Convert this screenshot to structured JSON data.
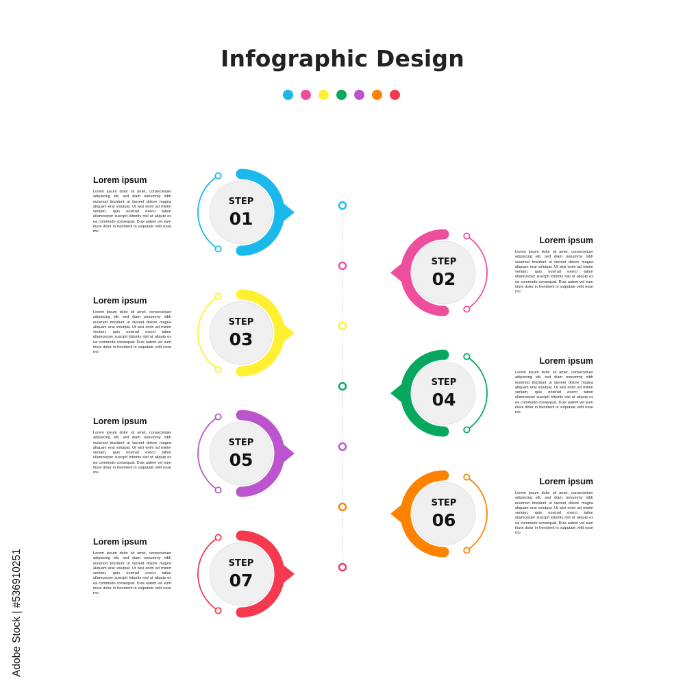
{
  "title": "Infographic Design",
  "colors": {
    "blue": "#1AB8EB",
    "pink": "#EE4F9D",
    "yellow": "#FFF132",
    "green": "#05A85D",
    "purple": "#BC54CD",
    "orange": "#FF8300",
    "red": "#F5394F"
  },
  "palette_dots": [
    "#1AB8EB",
    "#EE4F9D",
    "#FFF132",
    "#05A85D",
    "#BC54CD",
    "#FF8300",
    "#F5394F"
  ],
  "step_word": "STEP",
  "steps": [
    {
      "num": "01",
      "color": "#1AB8EB",
      "side": "left",
      "heading": "Lorem ipsum",
      "text": "Lorem ipsum dolor sit amet, consectetuer adipiscing elit, sed diam nonummy nibh euismod tincidunt ut laoreet dolore magna aliquam erat volutpat. Ut wisi enim ad minim veniam, quis nostrud exerci tation ullamcorper suscipit lobortis nisl ut aliquip ex ea commodo consequat. Duis autem vel eum iriure dolor in hendrerit in vulputate velit esse mo"
    },
    {
      "num": "02",
      "color": "#EE4F9D",
      "side": "right",
      "heading": "Lorem ipsum",
      "text": "Lorem ipsum dolor sit amet, consectetuer adipiscing elit, sed diam nonummy nibh euismod tincidunt ut laoreet dolore magna aliquam erat volutpat. Ut wisi enim ad minim veniam, quis nostrud exerci tation ullamcorper suscipit lobortis nisl ut aliquip ex ea commodo consequat. Duis autem vel eum iriure dolor in hendrerit in vulputate velit esse mo"
    },
    {
      "num": "03",
      "color": "#FFF132",
      "side": "left",
      "heading": "Lorem ipsum",
      "text": "Lorem ipsum dolor sit amet, consectetuer adipiscing elit, sed diam nonummy nibh euismod tincidunt ut laoreet dolore magna aliquam erat volutpat. Ut wisi enim ad minim veniam, quis nostrud exerci tation ullamcorper suscipit lobortis nisl ut aliquip ex ea commodo consequat. Duis autem vel eum iriure dolor in hendrerit in vulputate velit esse mo"
    },
    {
      "num": "04",
      "color": "#05A85D",
      "side": "right",
      "heading": "Lorem ipsum",
      "text": "Lorem ipsum dolor sit amet, consectetuer adipiscing elit, sed diam nonummy nibh euismod tincidunt ut laoreet dolore magna aliquam erat volutpat. Ut wisi enim ad minim veniam, quis nostrud exerci tation ullamcorper suscipit lobortis nisl ut aliquip ex ea commodo consequat. Duis autem vel eum iriure dolor in hendrerit in vulputate velit esse mo"
    },
    {
      "num": "05",
      "color": "#BC54CD",
      "side": "left",
      "heading": "Lorem ipsum",
      "text": "Lorem ipsum dolor sit amet, consectetuer adipiscing elit, sed diam nonummy nibh euismod tincidunt ut laoreet dolore magna aliquam erat volutpat. Ut wisi enim ad minim veniam, quis nostrud exerci tation ullamcorper suscipit lobortis nisl ut aliquip ex ea commodo consequat. Duis autem vel eum iriure dolor in hendrerit in vulputate velit esse mo"
    },
    {
      "num": "06",
      "color": "#FF8300",
      "side": "right",
      "heading": "Lorem ipsum",
      "text": "Lorem ipsum dolor sit amet, consectetuer adipiscing elit, sed diam nonummy nibh euismod tincidunt ut laoreet dolore magna aliquam erat volutpat. Ut wisi enim ad minim veniam, quis nostrud exerci tation ullamcorper suscipit lobortis nisl ut aliquip ex ea commodo consequat. Duis autem vel eum iriure dolor in hendrerit in vulputate velit esse mo"
    },
    {
      "num": "07",
      "color": "#F5394F",
      "side": "left",
      "heading": "Lorem ipsum",
      "text": "Lorem ipsum dolor sit amet, consectetuer adipiscing elit, sed diam nonummy nibh euismod tincidunt ut laoreet dolore magna aliquam erat volutpat. Ut wisi enim ad minim veniam, quis nostrud exerci tation ullamcorper suscipit lobortis nisl ut aliquip ex ea commodo consequat. Duis autem vel eum iriure dolor in hendrerit in vulputate velit esse mo"
    }
  ],
  "stock_id": "Adobe Stock | #536910251"
}
